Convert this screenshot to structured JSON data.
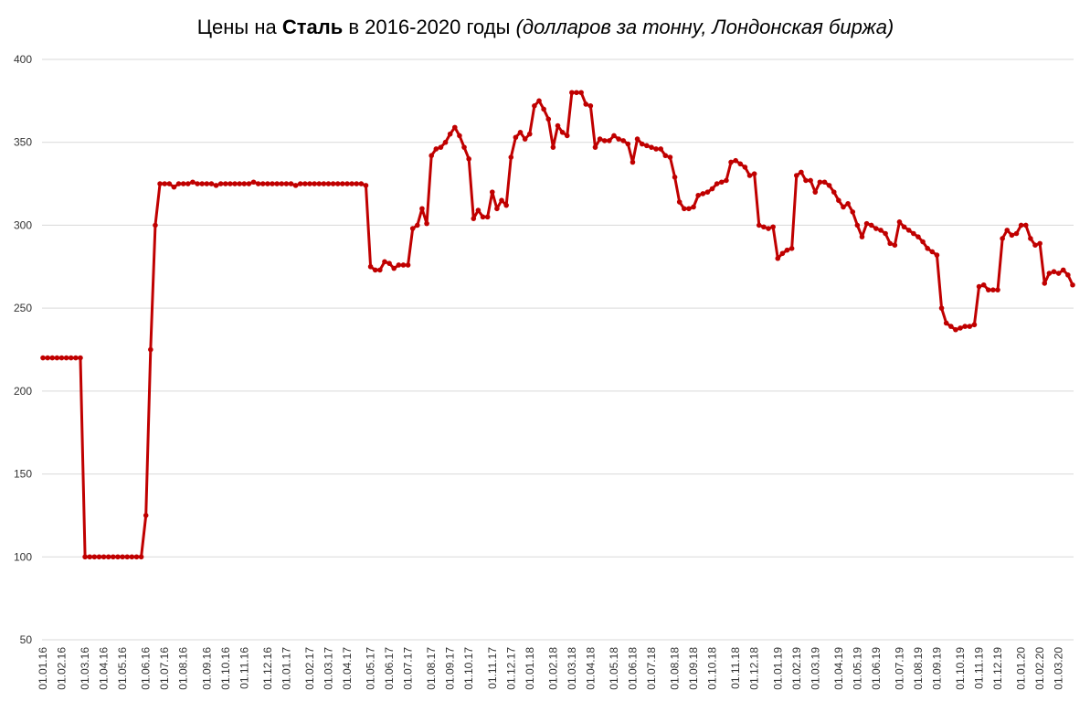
{
  "chart_data": {
    "type": "line",
    "title_parts": [
      "Цены на",
      "Сталь",
      "в 2016-2020 годы",
      "(долларов за тонну, Лондонская биржа)"
    ],
    "categories": [
      "01.01.16",
      null,
      null,
      null,
      "01.02.16",
      null,
      null,
      null,
      null,
      "01.03.16",
      null,
      null,
      null,
      "01.04.16",
      null,
      null,
      null,
      "01.05.16",
      null,
      null,
      null,
      null,
      "01.06.16",
      null,
      null,
      null,
      "01.07.16",
      null,
      null,
      null,
      "01.08.16",
      null,
      null,
      null,
      null,
      "01.09.16",
      null,
      null,
      null,
      "01.10.16",
      null,
      null,
      null,
      "01.11.16",
      null,
      null,
      null,
      null,
      "01.12.16",
      null,
      null,
      null,
      "01.01.17",
      null,
      null,
      null,
      null,
      "01.02.17",
      null,
      null,
      null,
      "01.03.17",
      null,
      null,
      null,
      "01.04.17",
      null,
      null,
      null,
      null,
      "01.05.17",
      null,
      null,
      null,
      "01.06.17",
      null,
      null,
      null,
      "01.07.17",
      null,
      null,
      null,
      null,
      "01.08.17",
      null,
      null,
      null,
      "01.09.17",
      null,
      null,
      null,
      "01.10.17",
      null,
      null,
      null,
      null,
      "01.11.17",
      null,
      null,
      null,
      "01.12.17",
      null,
      null,
      null,
      "01.01.18",
      null,
      null,
      null,
      null,
      "01.02.18",
      null,
      null,
      null,
      "01.03.18",
      null,
      null,
      null,
      "01.04.18",
      null,
      null,
      null,
      null,
      "01.05.18",
      null,
      null,
      null,
      "01.06.18",
      null,
      null,
      null,
      "01.07.18",
      null,
      null,
      null,
      null,
      "01.08.18",
      null,
      null,
      null,
      "01.09.18",
      null,
      null,
      null,
      "01.10.18",
      null,
      null,
      null,
      null,
      "01.11.18",
      null,
      null,
      null,
      "01.12.18",
      null,
      null,
      null,
      null,
      "01.01.19",
      null,
      null,
      null,
      "01.02.19",
      null,
      null,
      null,
      "01.03.19",
      null,
      null,
      null,
      null,
      "01.04.19",
      null,
      null,
      null,
      "01.05.19",
      null,
      null,
      null,
      "01.06.19",
      null,
      null,
      null,
      null,
      "01.07.19",
      null,
      null,
      null,
      "01.08.19",
      null,
      null,
      null,
      "01.09.19",
      null,
      null,
      null,
      null,
      "01.10.19",
      null,
      null,
      null,
      "01.11.19",
      null,
      null,
      null,
      "01.12.19",
      null,
      null,
      null,
      null,
      "01.01.20",
      null,
      null,
      null,
      "01.02.20",
      null,
      null,
      null,
      "01.03.20",
      null,
      null,
      null
    ],
    "series": [
      {
        "color": "#c00000",
        "values": [
          220,
          220,
          220,
          220,
          220,
          220,
          220,
          220,
          220,
          100,
          100,
          100,
          100,
          100,
          100,
          100,
          100,
          100,
          100,
          100,
          100,
          100,
          125,
          225,
          300,
          325,
          325,
          325,
          323,
          325,
          325,
          325,
          326,
          325,
          325,
          325,
          325,
          324,
          325,
          325,
          325,
          325,
          325,
          325,
          325,
          326,
          325,
          325,
          325,
          325,
          325,
          325,
          325,
          325,
          324,
          325,
          325,
          325,
          325,
          325,
          325,
          325,
          325,
          325,
          325,
          325,
          325,
          325,
          325,
          324,
          275,
          273,
          273,
          278,
          277,
          274,
          276,
          276,
          276,
          298,
          300,
          310,
          301,
          342,
          346,
          347,
          350,
          355,
          359,
          354,
          347,
          340,
          304,
          309,
          305,
          305,
          320,
          310,
          315,
          312,
          341,
          353,
          356,
          352,
          355,
          372,
          375,
          370,
          364,
          347,
          360,
          356,
          354,
          380,
          380,
          380,
          373,
          372,
          347,
          352,
          351,
          351,
          354,
          352,
          351,
          349,
          338,
          352,
          349,
          348,
          347,
          346,
          346,
          342,
          341,
          329,
          314,
          310,
          310,
          311,
          318,
          319,
          320,
          322,
          325,
          326,
          327,
          338,
          339,
          337,
          335,
          330,
          331,
          300,
          299,
          298,
          299,
          280,
          283,
          285,
          286,
          330,
          332,
          327,
          327,
          320,
          326,
          326,
          324,
          320,
          315,
          311,
          313,
          308,
          300,
          293,
          301,
          300,
          298,
          297,
          295,
          289,
          288,
          302,
          299,
          297,
          295,
          293,
          290,
          286,
          284,
          282,
          250,
          241,
          239,
          237,
          238,
          239,
          239,
          240,
          263,
          264,
          261,
          261,
          261,
          292,
          297,
          294,
          295,
          300,
          300,
          292,
          288,
          289,
          265,
          271,
          272,
          271,
          273,
          270,
          264
        ]
      }
    ],
    "ylim": [
      50,
      400
    ],
    "yticks": [
      50,
      100,
      150,
      200,
      250,
      300,
      350,
      400
    ],
    "grid": true
  }
}
